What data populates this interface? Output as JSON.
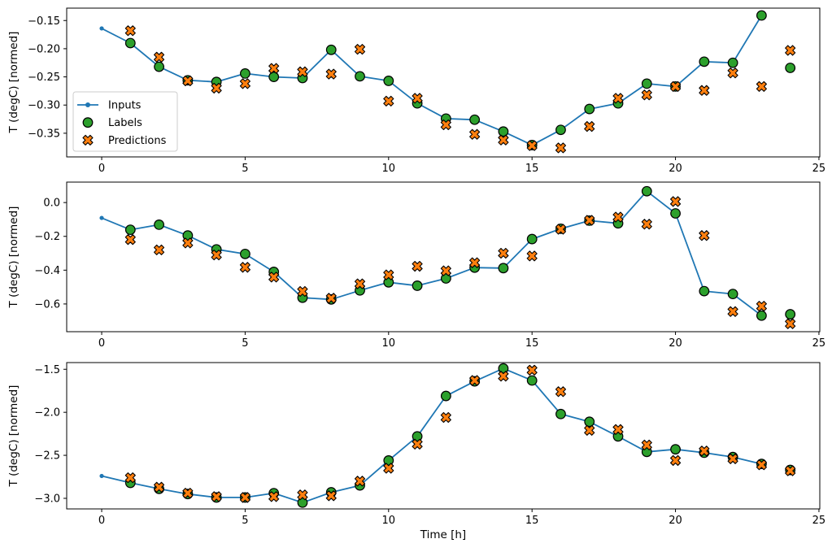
{
  "figure": {
    "xlabel": "Time [h]",
    "ylabel": "T (degC) [normed]",
    "background": "#ffffff",
    "colors": {
      "inputs": "#1f77b4",
      "labels": "#2ca02c",
      "predictions": "#ff7f0e",
      "marker_edge": "#000000",
      "spine": "#000000",
      "legend_border": "#cccccc"
    },
    "legend": {
      "position": "upper-left-of-first-subplot",
      "entries": [
        {
          "label": "Inputs",
          "glyph": "line-dot",
          "color": "#1f77b4"
        },
        {
          "label": "Labels",
          "glyph": "circle",
          "color": "#2ca02c"
        },
        {
          "label": "Predictions",
          "glyph": "x-marker",
          "color": "#ff7f0e"
        }
      ]
    }
  },
  "chart_data": [
    {
      "type": "line",
      "title": "",
      "xlabel": "",
      "ylabel": "T (degC) [normed]",
      "grid": false,
      "legend": true,
      "xlim": [
        -1.22,
        25.03
      ],
      "ylim": [
        -0.392,
        -0.128
      ],
      "x_tick_values": [
        0,
        5,
        10,
        15,
        20,
        25
      ],
      "x_tick_labels": [
        "0",
        "5",
        "10",
        "15",
        "20",
        "25"
      ],
      "y_tick_values": [
        -0.15,
        -0.2,
        -0.25,
        -0.3,
        -0.35
      ],
      "y_tick_labels": [
        "−0.15",
        "−0.20",
        "−0.25",
        "−0.30",
        "−0.35"
      ],
      "series": [
        {
          "name": "Inputs",
          "style": "line-dot",
          "color": "#1f77b4",
          "x": [
            0,
            1,
            2,
            3,
            4,
            5,
            6,
            7,
            8,
            9,
            10,
            11,
            12,
            13,
            14,
            15,
            16,
            17,
            18,
            19,
            20,
            21,
            22,
            23
          ],
          "y": [
            -0.164,
            -0.19,
            -0.232,
            -0.256,
            -0.259,
            -0.244,
            -0.25,
            -0.252,
            -0.202,
            -0.249,
            -0.257,
            -0.297,
            -0.324,
            -0.326,
            -0.347,
            -0.371,
            -0.344,
            -0.307,
            -0.297,
            -0.262,
            -0.267,
            -0.223,
            -0.225,
            -0.141
          ]
        },
        {
          "name": "Labels",
          "style": "circle",
          "color": "#2ca02c",
          "x": [
            1,
            2,
            3,
            4,
            5,
            6,
            7,
            8,
            9,
            10,
            11,
            12,
            13,
            14,
            15,
            16,
            17,
            18,
            19,
            20,
            21,
            22,
            23,
            24
          ],
          "y": [
            -0.19,
            -0.232,
            -0.256,
            -0.259,
            -0.244,
            -0.25,
            -0.252,
            -0.202,
            -0.249,
            -0.257,
            -0.297,
            -0.324,
            -0.326,
            -0.347,
            -0.371,
            -0.344,
            -0.307,
            -0.297,
            -0.262,
            -0.267,
            -0.223,
            -0.225,
            -0.141,
            -0.234
          ]
        },
        {
          "name": "Predictions",
          "style": "x-marker",
          "color": "#ff7f0e",
          "x": [
            1,
            2,
            3,
            4,
            5,
            6,
            7,
            8,
            9,
            10,
            11,
            12,
            13,
            14,
            15,
            16,
            17,
            18,
            19,
            20,
            21,
            22,
            23,
            24
          ],
          "y": [
            -0.168,
            -0.215,
            -0.257,
            -0.27,
            -0.262,
            -0.235,
            -0.241,
            -0.245,
            -0.201,
            -0.293,
            -0.288,
            -0.335,
            -0.352,
            -0.362,
            -0.372,
            -0.376,
            -0.338,
            -0.288,
            -0.282,
            -0.267,
            -0.274,
            -0.243,
            -0.267,
            -0.203
          ]
        }
      ]
    },
    {
      "type": "line",
      "title": "",
      "xlabel": "",
      "ylabel": "T (degC) [normed]",
      "grid": false,
      "legend": false,
      "xlim": [
        -1.22,
        25.03
      ],
      "ylim": [
        -0.764,
        0.121
      ],
      "x_tick_values": [
        0,
        5,
        10,
        15,
        20,
        25
      ],
      "x_tick_labels": [
        "0",
        "5",
        "10",
        "15",
        "20",
        "25"
      ],
      "y_tick_values": [
        0.0,
        -0.2,
        -0.4,
        -0.6
      ],
      "y_tick_labels": [
        "0.0",
        "−0.2",
        "−0.4",
        "−0.6"
      ],
      "series": [
        {
          "name": "Inputs",
          "style": "line-dot",
          "color": "#1f77b4",
          "x": [
            0,
            1,
            2,
            3,
            4,
            5,
            6,
            7,
            8,
            9,
            10,
            11,
            12,
            13,
            14,
            15,
            16,
            17,
            18,
            19,
            20,
            21,
            22,
            23
          ],
          "y": [
            -0.091,
            -0.161,
            -0.131,
            -0.195,
            -0.277,
            -0.304,
            -0.41,
            -0.563,
            -0.573,
            -0.52,
            -0.472,
            -0.492,
            -0.449,
            -0.385,
            -0.388,
            -0.216,
            -0.155,
            -0.107,
            -0.123,
            0.067,
            -0.064,
            -0.524,
            -0.541,
            -0.669
          ]
        },
        {
          "name": "Labels",
          "style": "circle",
          "color": "#2ca02c",
          "x": [
            1,
            2,
            3,
            4,
            5,
            6,
            7,
            8,
            9,
            10,
            11,
            12,
            13,
            14,
            15,
            16,
            17,
            18,
            19,
            20,
            21,
            22,
            23,
            24
          ],
          "y": [
            -0.161,
            -0.131,
            -0.195,
            -0.277,
            -0.304,
            -0.41,
            -0.563,
            -0.573,
            -0.52,
            -0.472,
            -0.492,
            -0.449,
            -0.385,
            -0.388,
            -0.216,
            -0.155,
            -0.107,
            -0.123,
            0.067,
            -0.064,
            -0.524,
            -0.541,
            -0.669,
            -0.661
          ]
        },
        {
          "name": "Predictions",
          "style": "x-marker",
          "color": "#ff7f0e",
          "x": [
            1,
            2,
            3,
            4,
            5,
            6,
            7,
            8,
            9,
            10,
            11,
            12,
            13,
            14,
            15,
            16,
            17,
            18,
            19,
            20,
            21,
            22,
            23,
            24
          ],
          "y": [
            -0.219,
            -0.28,
            -0.239,
            -0.31,
            -0.383,
            -0.441,
            -0.526,
            -0.566,
            -0.481,
            -0.428,
            -0.377,
            -0.404,
            -0.356,
            -0.3,
            -0.316,
            -0.158,
            -0.105,
            -0.086,
            -0.128,
            0.006,
            -0.195,
            -0.645,
            -0.613,
            -0.717
          ]
        }
      ]
    },
    {
      "type": "line",
      "title": "",
      "xlabel": "Time [h]",
      "ylabel": "T (degC) [normed]",
      "grid": false,
      "legend": false,
      "xlim": [
        -1.22,
        25.03
      ],
      "ylim": [
        -3.123,
        -1.422
      ],
      "x_tick_values": [
        0,
        5,
        10,
        15,
        20,
        25
      ],
      "x_tick_labels": [
        "0",
        "5",
        "10",
        "15",
        "20",
        "25"
      ],
      "y_tick_values": [
        -1.5,
        -2.0,
        -2.5,
        -3.0
      ],
      "y_tick_labels": [
        "−1.5",
        "−2.0",
        "−2.5",
        "−3.0"
      ],
      "series": [
        {
          "name": "Inputs",
          "style": "line-dot",
          "color": "#1f77b4",
          "x": [
            0,
            1,
            2,
            3,
            4,
            5,
            6,
            7,
            8,
            9,
            10,
            11,
            12,
            13,
            14,
            15,
            16,
            17,
            18,
            19,
            20,
            21,
            22,
            23
          ],
          "y": [
            -2.74,
            -2.82,
            -2.89,
            -2.95,
            -2.99,
            -2.99,
            -2.94,
            -3.05,
            -2.93,
            -2.85,
            -2.56,
            -2.28,
            -1.81,
            -1.64,
            -1.49,
            -1.63,
            -2.02,
            -2.11,
            -2.28,
            -2.46,
            -2.43,
            -2.47,
            -2.52,
            -2.6
          ]
        },
        {
          "name": "Labels",
          "style": "circle",
          "color": "#2ca02c",
          "x": [
            1,
            2,
            3,
            4,
            5,
            6,
            7,
            8,
            9,
            10,
            11,
            12,
            13,
            14,
            15,
            16,
            17,
            18,
            19,
            20,
            21,
            22,
            23,
            24
          ],
          "y": [
            -2.82,
            -2.89,
            -2.95,
            -2.99,
            -2.99,
            -2.94,
            -3.05,
            -2.93,
            -2.85,
            -2.56,
            -2.28,
            -1.81,
            -1.64,
            -1.49,
            -1.63,
            -2.02,
            -2.11,
            -2.28,
            -2.46,
            -2.43,
            -2.47,
            -2.52,
            -2.6,
            -2.67
          ]
        },
        {
          "name": "Predictions",
          "style": "x-marker",
          "color": "#ff7f0e",
          "x": [
            1,
            2,
            3,
            4,
            5,
            6,
            7,
            8,
            9,
            10,
            11,
            12,
            13,
            14,
            15,
            16,
            17,
            18,
            19,
            20,
            21,
            22,
            23,
            24
          ],
          "y": [
            -2.76,
            -2.87,
            -2.94,
            -2.98,
            -2.99,
            -2.98,
            -2.96,
            -2.97,
            -2.8,
            -2.65,
            -2.37,
            -2.06,
            -1.63,
            -1.58,
            -1.51,
            -1.76,
            -2.21,
            -2.2,
            -2.38,
            -2.56,
            -2.45,
            -2.54,
            -2.61,
            -2.68
          ]
        }
      ]
    }
  ]
}
